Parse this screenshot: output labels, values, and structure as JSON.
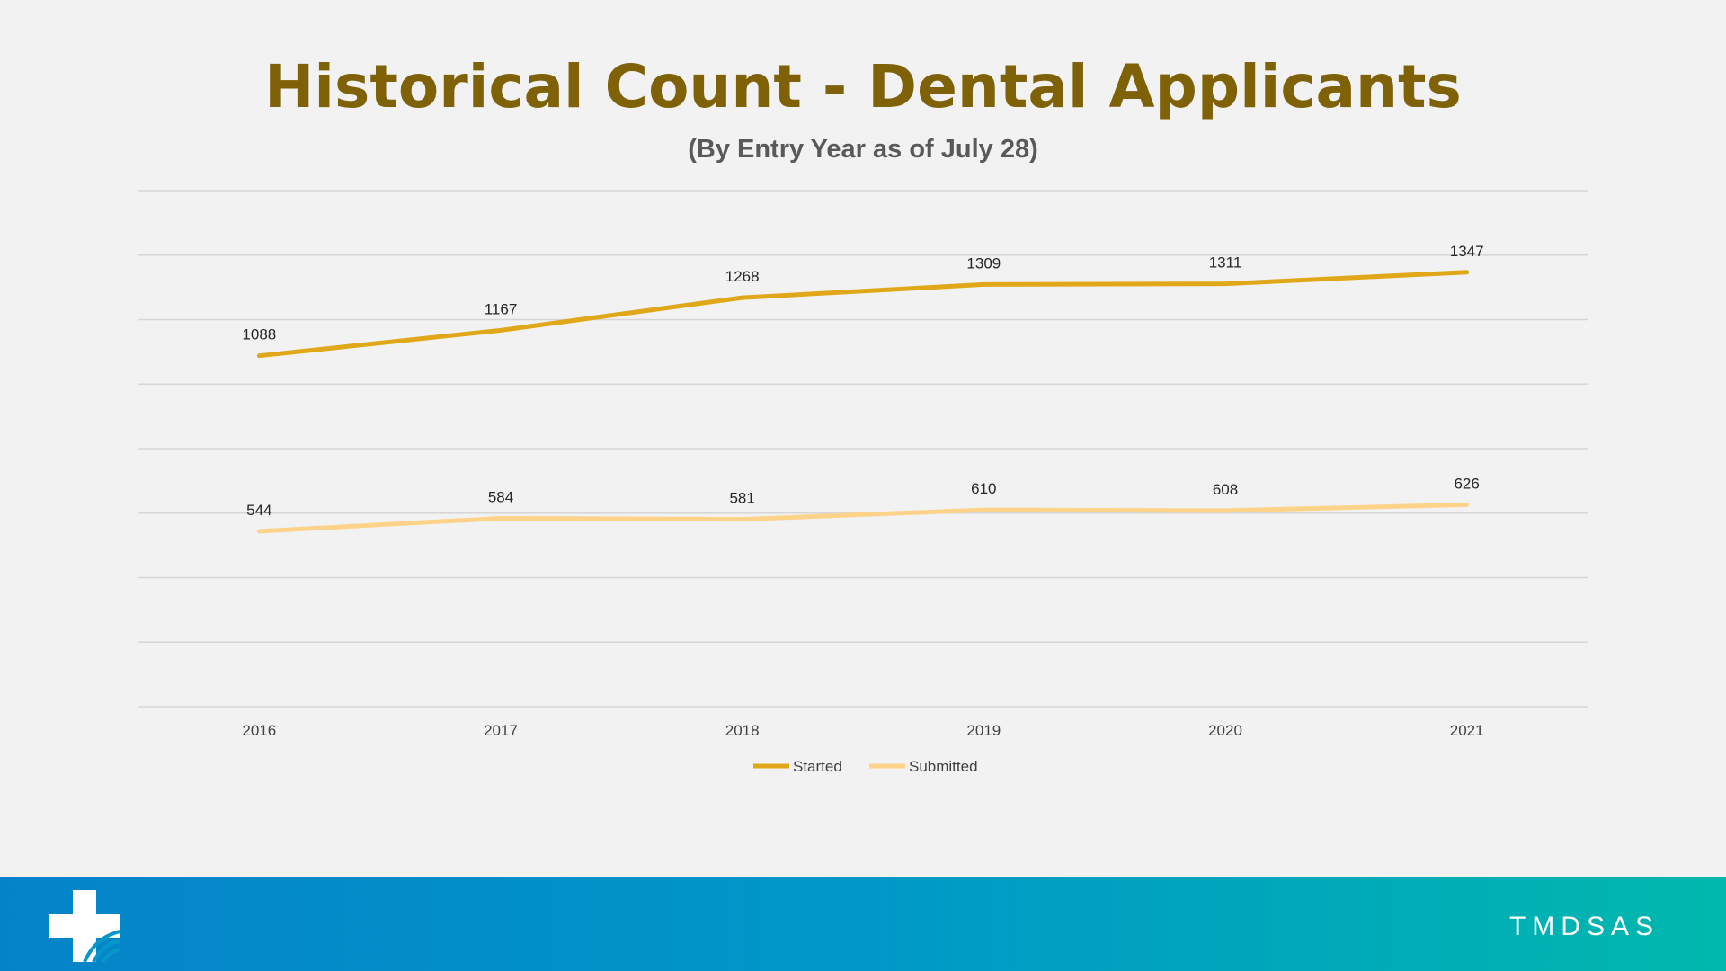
{
  "header": {
    "title": "Historical Count - Dental Applicants",
    "subtitle": "(By Entry Year as of July 28)"
  },
  "colors": {
    "title": "#7f6108",
    "started": "#e0a818",
    "submitted": "#fdd38a",
    "grid": "#d6d6d6",
    "footer_start": "#0583c9",
    "footer_end": "#00b8ad"
  },
  "footer": {
    "brand": "TMDSAS",
    "logo_icon": "medical-cross-icon"
  },
  "chart_data": {
    "type": "line",
    "x": [
      "2016",
      "2017",
      "2018",
      "2019",
      "2020",
      "2021"
    ],
    "series": [
      {
        "name": "Started",
        "values": [
          1088,
          1167,
          1268,
          1309,
          1311,
          1347
        ]
      },
      {
        "name": "Submitted",
        "values": [
          544,
          584,
          581,
          610,
          608,
          626
        ]
      }
    ],
    "ylim": [
      0,
      1600
    ],
    "gridline_step": 200,
    "grid": true,
    "y_axis_labels_shown": false,
    "data_labels": true,
    "legend_position": "bottom"
  }
}
